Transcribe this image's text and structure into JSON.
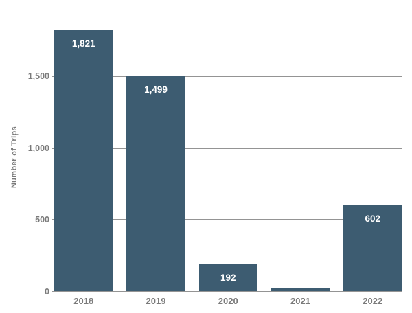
{
  "colors": {
    "background": "#ffffff",
    "bar_fill": "#3d5c71",
    "gridline": "#949494",
    "axis_line": "#949494",
    "tick_text": "#7a7a7a",
    "bar_label_text": "#ffffff"
  },
  "chart_data": {
    "type": "bar",
    "title": "",
    "categories": [
      "2018",
      "2019",
      "2020",
      "2021",
      "2022"
    ],
    "values": [
      1821,
      1499,
      192,
      30,
      602
    ],
    "data_labels": [
      "1,821",
      "1,499",
      "192",
      "",
      "602"
    ],
    "xlabel": "",
    "ylabel": "Number of Trips",
    "yticks": [
      {
        "value": 0,
        "label": "0"
      },
      {
        "value": 500,
        "label": "500"
      },
      {
        "value": 1000,
        "label": "1,000"
      },
      {
        "value": 1500,
        "label": "1,500"
      }
    ],
    "ylim": [
      0,
      1900
    ],
    "grid": "horizontal-only",
    "legend": "none",
    "notes": "2021 bar has no visible data label; value estimated from pixel height"
  }
}
